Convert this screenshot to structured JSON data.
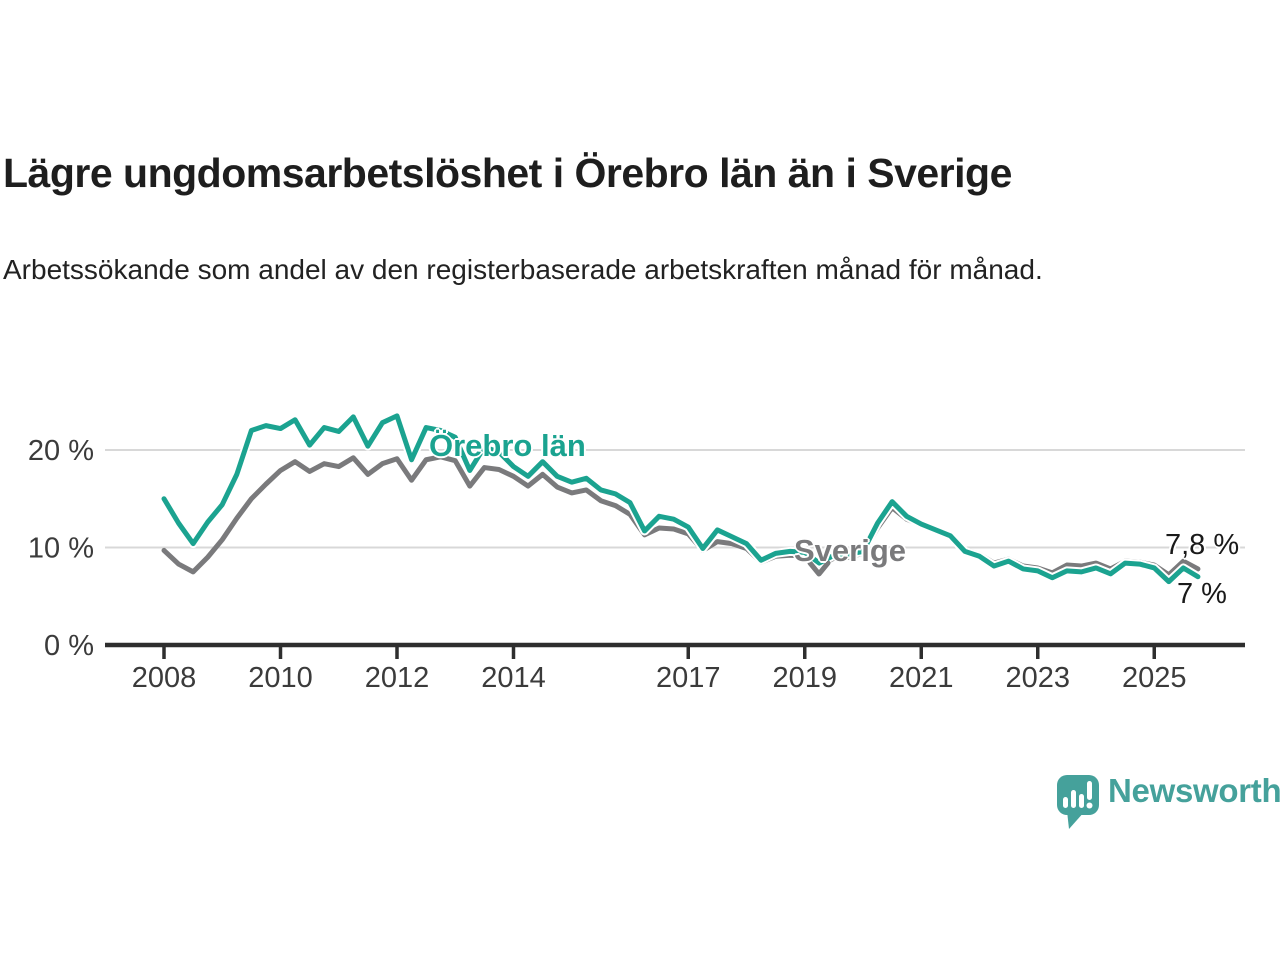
{
  "header": {
    "title": "Lägre ungdomsarbetslöshet i Örebro län än i Sverige",
    "subtitle": "Arbetssökande som andel av den registerbaserade arbetskraften månad för månad."
  },
  "chart_data": {
    "type": "line",
    "x_unit": "decimal_year",
    "x": [
      2008.0,
      2008.25,
      2008.5,
      2008.75,
      2009.0,
      2009.25,
      2009.5,
      2009.75,
      2010.0,
      2010.25,
      2010.5,
      2010.75,
      2011.0,
      2011.25,
      2011.5,
      2011.75,
      2012.0,
      2012.25,
      2012.5,
      2012.75,
      2013.0,
      2013.25,
      2013.5,
      2013.75,
      2014.0,
      2014.25,
      2014.5,
      2014.75,
      2015.0,
      2015.25,
      2015.5,
      2015.75,
      2016.0,
      2016.25,
      2016.5,
      2016.75,
      2017.0,
      2017.25,
      2017.5,
      2017.75,
      2018.0,
      2018.25,
      2018.5,
      2018.75,
      2019.0,
      2019.25,
      2019.5,
      2019.75,
      2020.0,
      2020.25,
      2020.5,
      2020.75,
      2021.0,
      2021.25,
      2021.5,
      2021.75,
      2022.0,
      2022.25,
      2022.5,
      2022.75,
      2023.0,
      2023.25,
      2023.5,
      2023.75,
      2024.0,
      2024.25,
      2024.5,
      2024.75,
      2025.0,
      2025.25,
      2025.5,
      2025.75
    ],
    "series": [
      {
        "name": "Örebro län",
        "color": "#1ba390",
        "values": [
          15.0,
          12.5,
          10.4,
          12.6,
          14.4,
          17.5,
          22.0,
          22.5,
          22.2,
          23.1,
          20.5,
          22.3,
          21.9,
          23.4,
          20.4,
          22.8,
          23.5,
          19.0,
          22.3,
          22.0,
          21.3,
          17.9,
          20.3,
          19.8,
          18.3,
          17.3,
          18.8,
          17.3,
          16.7,
          17.1,
          15.9,
          15.5,
          14.6,
          11.7,
          13.2,
          12.9,
          12.1,
          9.9,
          11.8,
          11.1,
          10.4,
          8.7,
          9.4,
          9.6,
          9.5,
          8.4,
          9.2,
          9.3,
          9.6,
          12.5,
          14.7,
          13.2,
          12.4,
          11.8,
          11.2,
          9.6,
          9.1,
          8.1,
          8.6,
          7.8,
          7.6,
          6.9,
          7.6,
          7.5,
          7.9,
          7.3,
          8.4,
          8.3,
          7.9,
          6.5,
          7.9,
          7.0
        ]
      },
      {
        "name": "Sverige",
        "color": "#7a7a7c",
        "values": [
          9.7,
          8.3,
          7.5,
          9.0,
          10.8,
          13.0,
          15.0,
          16.5,
          17.9,
          18.8,
          17.8,
          18.6,
          18.3,
          19.2,
          17.5,
          18.6,
          19.1,
          16.9,
          19.0,
          19.3,
          18.9,
          16.3,
          18.2,
          18.0,
          17.3,
          16.3,
          17.5,
          16.2,
          15.6,
          15.9,
          14.8,
          14.3,
          13.4,
          11.3,
          12.0,
          11.9,
          11.4,
          9.7,
          10.6,
          10.4,
          9.9,
          8.5,
          9.1,
          9.2,
          9.1,
          8.2,
          8.9,
          9.0,
          9.4,
          12.0,
          14.1,
          12.9,
          12.3,
          11.7,
          11.1,
          9.8,
          9.3,
          8.4,
          8.8,
          8.1,
          7.9,
          7.4,
          8.2,
          8.1,
          8.4,
          7.8,
          8.6,
          8.5,
          8.2,
          7.2,
          8.6,
          7.8
        ]
      }
    ],
    "ylim": [
      0,
      24
    ],
    "yticks": [
      {
        "value": 0,
        "label": "0 %"
      },
      {
        "value": 10,
        "label": "10 %"
      },
      {
        "value": 20,
        "label": "20 %"
      }
    ],
    "xticks": [
      {
        "value": 2008,
        "label": "2008"
      },
      {
        "value": 2010,
        "label": "2010"
      },
      {
        "value": 2012,
        "label": "2012"
      },
      {
        "value": 2014,
        "label": "2014"
      },
      {
        "value": 2017,
        "label": "2017"
      },
      {
        "value": 2019,
        "label": "2019"
      },
      {
        "value": 2021,
        "label": "2021"
      },
      {
        "value": 2023,
        "label": "2023"
      },
      {
        "value": 2025,
        "label": "2025"
      }
    ],
    "grid": "horizontal",
    "legend_position": "inline-labels",
    "annotations": {
      "end_value_sverige": "7,8 %",
      "end_value_orebro": "7 %"
    }
  },
  "footer": {
    "brand": "Newsworthy"
  },
  "colors": {
    "accent_teal": "#1ba390",
    "neutral_gray": "#7a7a7c",
    "brand_teal": "#45a19b",
    "gridline": "#d8d8d8",
    "axis": "#2e2e2e"
  }
}
